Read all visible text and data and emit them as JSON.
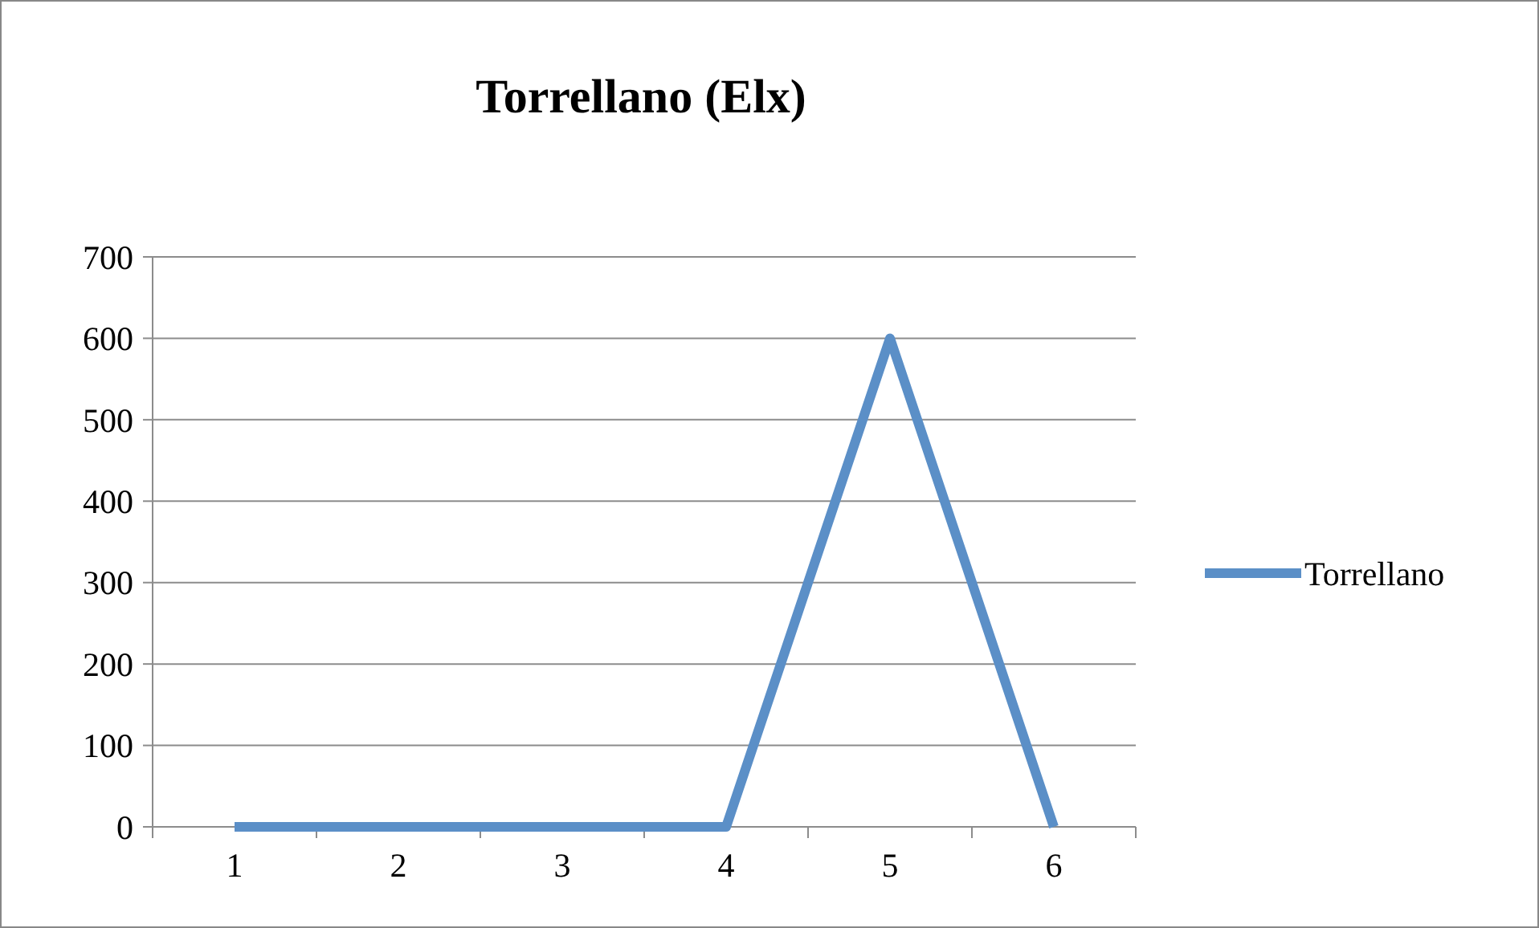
{
  "chart_data": {
    "type": "line",
    "title": "Torrellano (Elx)",
    "categories": [
      "1",
      "2",
      "3",
      "4",
      "5",
      "6"
    ],
    "series": [
      {
        "name": "Torrellano",
        "color": "#5b8fc7",
        "values": [
          0,
          0,
          0,
          0,
          600,
          0
        ]
      }
    ],
    "ylim": [
      0,
      700
    ],
    "yticks": [
      0,
      100,
      200,
      300,
      400,
      500,
      600,
      700
    ],
    "grid": "y",
    "legend": "right",
    "marker": "none",
    "line_style": "solid"
  }
}
